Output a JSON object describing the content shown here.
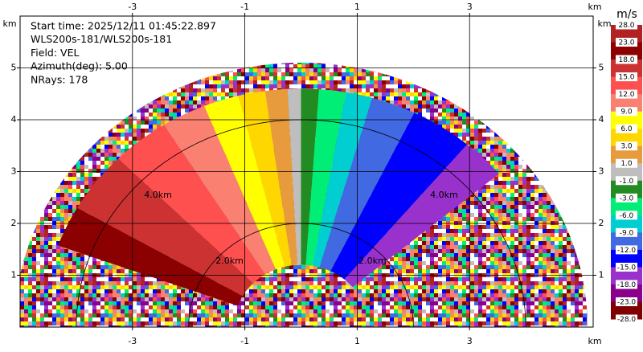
{
  "chart_data": {
    "type": "ppi",
    "info": [
      "Start time: 2025/12/11 01:45:22.897",
      "WLS200s-181/WLS200s-181",
      "Field: VEL",
      "Azimuth(deg): 5.00",
      "NRays: 178"
    ],
    "x_label": "km",
    "y_label": "km",
    "xlim": [
      -5.0,
      5.2
    ],
    "ylim": [
      0,
      6
    ],
    "xticks": [
      -3,
      -1,
      1,
      3
    ],
    "yticks": [
      1,
      2,
      3,
      4,
      5
    ],
    "grid": true,
    "rings": [
      {
        "value": 2,
        "label": "2.0km"
      },
      {
        "value": 4,
        "label": "4.0km"
      }
    ],
    "max_range": 5.1,
    "sectors": {
      "azimuth_edges": [
        -70,
        -60,
        -45,
        -32,
        -22,
        -14,
        -8,
        -3,
        0,
        4,
        10,
        16,
        26,
        40,
        50
      ],
      "range": [
        1.2,
        4.6
      ],
      "values": [
        20,
        16,
        13,
        10,
        7,
        4,
        2,
        0,
        -2,
        -4,
        -7,
        -10,
        -13,
        -16
      ]
    },
    "colorbar": {
      "label": "m/s",
      "levels": [
        {
          "value": 28,
          "label": "28.0"
        },
        {
          "value": 23,
          "label": "23.0"
        },
        {
          "value": 18,
          "label": "18.0"
        },
        {
          "value": 15,
          "label": "15.0"
        },
        {
          "value": 12,
          "label": "12.0"
        },
        {
          "value": 9,
          "label": "9.0"
        },
        {
          "value": 6,
          "label": "6.0"
        },
        {
          "value": 3,
          "label": "3.0"
        },
        {
          "value": 1,
          "label": "1.0"
        },
        {
          "value": -1,
          "label": "-1.0"
        },
        {
          "value": -3,
          "label": "-3.0"
        },
        {
          "value": -6,
          "label": "-6.0"
        },
        {
          "value": -9,
          "label": "-9.0"
        },
        {
          "value": -12,
          "label": "-12.0"
        },
        {
          "value": -15,
          "label": "-15.0"
        },
        {
          "value": -18,
          "label": "-18.0"
        },
        {
          "value": -23,
          "label": "-23.0"
        },
        {
          "value": -28,
          "label": "-28.0"
        }
      ],
      "colors": [
        "#b22222",
        "#8b0000",
        "#cd3232",
        "#ff5050",
        "#fa8072",
        "#ffff00",
        "#ffd700",
        "#e89b3c",
        "#bebebe",
        "#228b22",
        "#00ee76",
        "#00ced1",
        "#4169e1",
        "#0000ff",
        "#9932cc",
        "#8b008b",
        "#800000"
      ]
    }
  }
}
